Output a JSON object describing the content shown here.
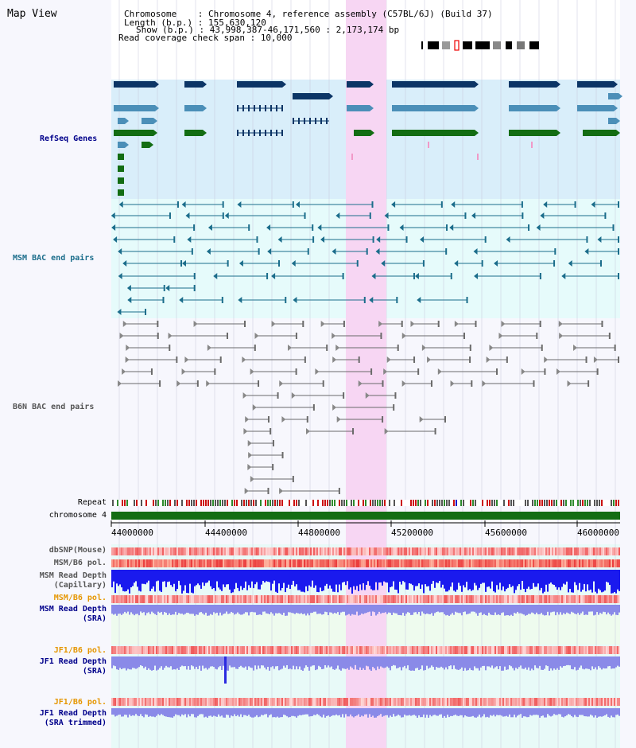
{
  "view": {
    "title": "Map View"
  },
  "header": {
    "chromosome_label": "Chromosome    :",
    "chromosome_value": "Chromosome 4, reference assembly (C57BL/6J) (Build 37)",
    "length_label": "Length (b.p.) :",
    "length_value": "155,630,120",
    "show_label": "Show (b.p.) :",
    "show_value": "43,998,387-46,171,560 : 2,173,174 bp",
    "coverage_label": "Read coverage check span :",
    "coverage_value": "10,000"
  },
  "tracks": {
    "refseq": "RefSeq Genes",
    "msm_bac": "MSM BAC end pairs",
    "b6n_bac": "B6N BAC end pairs",
    "repeat": "Repeat",
    "chromosome": "chromosome 4",
    "dbsnp": "dbSNP(Mouse)",
    "msm_b6_pol_1": "MSM/B6 pol.",
    "msm_read_depth_cap": "MSM Read Depth\n(Capillary)",
    "msm_b6_pol_2": "MSM/B6 pol.",
    "msm_read_depth_sra": "MSM Read Depth\n(SRA)",
    "jf1_b6_pol_1": "JF1/B6 pol.",
    "jf1_read_depth_sra": "JF1 Read Depth\n(SRA)",
    "jf1_b6_pol_2": "JF1/B6 pol.",
    "jf1_read_depth_trim": "JF1 Read Depth\n(SRA trimmed)"
  },
  "axis": {
    "ticks": [
      "44000000",
      "44400000",
      "44800000",
      "45200000",
      "45600000",
      "46000000"
    ]
  },
  "colors": {
    "refseq_bg": "#d9eefa",
    "bac_bg": "#e6fbfb",
    "b6n_bg": "#f7f7fd",
    "highlight": "#f7d6f3",
    "gene_dark": "#0c3566",
    "gene_mid": "#4b8fb8",
    "gene_green": "#136d13",
    "msm_line": "#1b6d8b",
    "b6n_line": "#6a6a6a",
    "label_blue": "#00008b",
    "label_teal": "#1b6d8b",
    "label_gray": "#555555",
    "label_orange": "#e59600"
  }
}
